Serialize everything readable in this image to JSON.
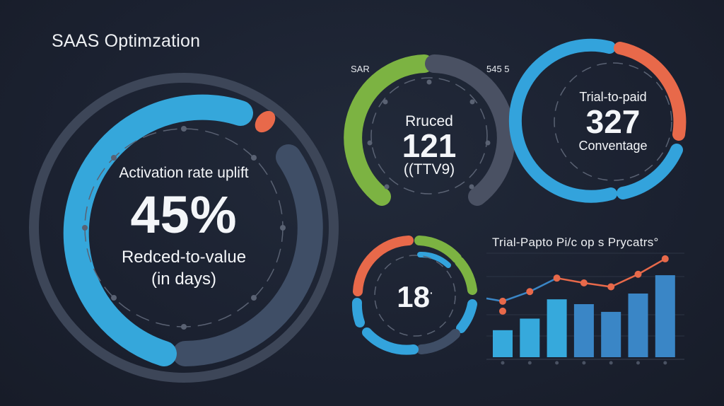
{
  "header": {
    "title": "SAAS Optimzation"
  },
  "main_gauge": {
    "label": "Activation rate uplift",
    "value": "45%",
    "subtitle_line1": "Redced-to-value",
    "subtitle_line2": "(in days)",
    "colors": {
      "progress": "#35a7db",
      "remaining": "#3f4e66",
      "marker": "#e8694a",
      "outer_ring": "#3d4658"
    }
  },
  "gauge_ttv": {
    "corner_left": "SAR",
    "corner_right": "545 5",
    "label": "Rruced",
    "value": "121",
    "subtitle": "((TTV9)",
    "colors": {
      "progress": "#7cb342",
      "remaining": "#4a5163"
    }
  },
  "gauge_conversion": {
    "label": "Trial-to-paid",
    "value": "327",
    "subtitle": "Conventage",
    "colors": {
      "primary": "#33a3dc",
      "accent": "#e8694a"
    }
  },
  "gauge_segments": {
    "value": "18",
    "value_suffix": "·",
    "colors": {
      "red": "#e8694a",
      "green": "#7cb342",
      "blue": "#33a3dc",
      "slate": "#3f4e66"
    }
  },
  "chart_data": {
    "type": "bar",
    "title": "Trial-Papto Pi/c op s Prycatrs°",
    "categories": [
      "1",
      "2",
      "3",
      "4",
      "5",
      "6",
      "7"
    ],
    "series": [
      {
        "name": "bars",
        "type": "bar",
        "values": [
          28,
          40,
          60,
          55,
          47,
          66,
          85
        ],
        "colors": [
          "#36a9dc",
          "#36a9dc",
          "#36a9dc",
          "#3a86c6",
          "#3a86c6",
          "#3a86c6",
          "#3a86c6"
        ]
      },
      {
        "name": "trend",
        "type": "line",
        "values": [
          58,
          68,
          82,
          77,
          73,
          86,
          102
        ],
        "colors": [
          "#3a86c6",
          "#3a86c6",
          "#3a86c6",
          "#e8694a",
          "#e8694a",
          "#e8694a",
          "#e8694a"
        ]
      }
    ],
    "xlabel": "",
    "ylabel": "",
    "ylim": [
      0,
      110
    ],
    "grid": true,
    "legend": "none"
  }
}
